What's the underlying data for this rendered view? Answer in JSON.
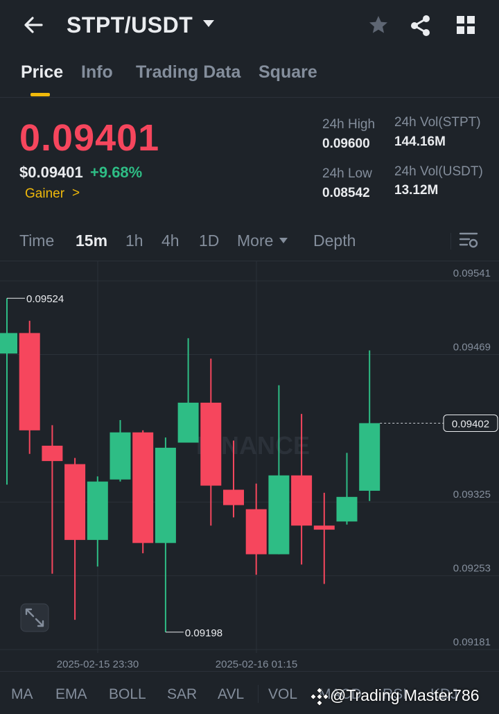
{
  "header": {
    "pair": "STPT/USDT",
    "icons": [
      "back-arrow-icon",
      "caret-down-icon",
      "star-icon",
      "share-icon",
      "grid-icon"
    ]
  },
  "tabs": [
    {
      "label": "Price",
      "active": true
    },
    {
      "label": "Info",
      "active": false
    },
    {
      "label": "Trading Data",
      "active": false
    },
    {
      "label": "Square",
      "active": false
    }
  ],
  "ticker": {
    "last_price": "0.09401",
    "usd_price": "$0.09401",
    "change": "+9.68%",
    "tag": "Gainer",
    "tag_arrow": ">",
    "high_label": "24h High",
    "high_value": "0.09600",
    "low_label": "24h Low",
    "low_value": "0.08542",
    "vol_base_label": "24h Vol(STPT)",
    "vol_base_value": "144.16M",
    "vol_quote_label": "24h Vol(USDT)",
    "vol_quote_value": "13.12M"
  },
  "intervals": [
    {
      "label": "Time",
      "active": false
    },
    {
      "label": "15m",
      "active": true
    },
    {
      "label": "1h",
      "active": false
    },
    {
      "label": "4h",
      "active": false
    },
    {
      "label": "1D",
      "active": false
    },
    {
      "label": "More",
      "active": false
    },
    {
      "label": "Depth",
      "active": false
    }
  ],
  "chart_data": {
    "type": "candlestick",
    "y_ticks": [
      "0.09541",
      "0.09469",
      "0.09325",
      "0.09253",
      "0.09181"
    ],
    "ylim": [
      0.0916,
      0.0956
    ],
    "x_ticks": [
      "2025-02-15 23:30",
      "2025-02-16 01:15"
    ],
    "current_price_label": "0.09402",
    "current_price": 0.09402,
    "max_label": "0.09524",
    "min_label": "0.09198",
    "watermark": "BINANCE",
    "colors": {
      "up": "#2ebd85",
      "down": "#f6465d",
      "grid": "#2b3139",
      "text": "#848e9c"
    },
    "candles": [
      {
        "o": 0.0947,
        "h": 0.09524,
        "l": 0.09342,
        "c": 0.0949
      },
      {
        "o": 0.0949,
        "h": 0.09502,
        "l": 0.09372,
        "c": 0.09395
      },
      {
        "o": 0.0938,
        "h": 0.094,
        "l": 0.09255,
        "c": 0.09365
      },
      {
        "o": 0.09362,
        "h": 0.09368,
        "l": 0.0921,
        "c": 0.09288
      },
      {
        "o": 0.09288,
        "h": 0.0935,
        "l": 0.09262,
        "c": 0.09345
      },
      {
        "o": 0.09347,
        "h": 0.09405,
        "l": 0.09345,
        "c": 0.09393
      },
      {
        "o": 0.09393,
        "h": 0.09395,
        "l": 0.09275,
        "c": 0.09285
      },
      {
        "o": 0.09285,
        "h": 0.09388,
        "l": 0.09198,
        "c": 0.09378
      },
      {
        "o": 0.09383,
        "h": 0.09485,
        "l": 0.09383,
        "c": 0.09422
      },
      {
        "o": 0.09422,
        "h": 0.09465,
        "l": 0.09302,
        "c": 0.09341
      },
      {
        "o": 0.09337,
        "h": 0.09385,
        "l": 0.0931,
        "c": 0.09322
      },
      {
        "o": 0.09318,
        "h": 0.09343,
        "l": 0.09254,
        "c": 0.09274
      },
      {
        "o": 0.09274,
        "h": 0.09439,
        "l": 0.09274,
        "c": 0.09351
      },
      {
        "o": 0.09351,
        "h": 0.09411,
        "l": 0.09264,
        "c": 0.09302
      },
      {
        "o": 0.09302,
        "h": 0.09334,
        "l": 0.09245,
        "c": 0.09298
      },
      {
        "o": 0.09306,
        "h": 0.09373,
        "l": 0.09303,
        "c": 0.0933
      },
      {
        "o": 0.09336,
        "h": 0.09473,
        "l": 0.09326,
        "c": 0.09402
      }
    ]
  },
  "indicators": [
    "MA",
    "EMA",
    "BOLL",
    "SAR",
    "AVL",
    "VOL",
    "MACD",
    "RSI",
    "KDJ"
  ],
  "watermark_text": "@Trading Master786"
}
